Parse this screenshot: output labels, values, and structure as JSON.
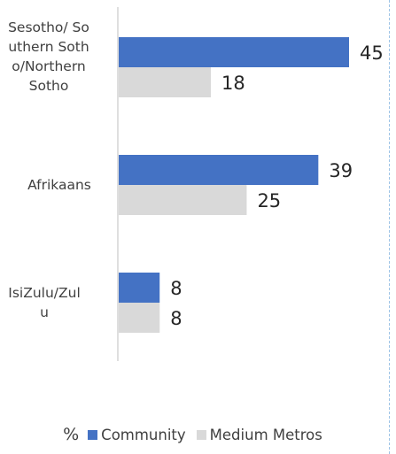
{
  "chart_data": {
    "type": "bar",
    "orientation": "horizontal",
    "categories": [
      "Sesotho/ Southern Sotho/Northern Sotho",
      "Afrikaans",
      "IsiZulu/Zulu"
    ],
    "series": [
      {
        "name": "Community",
        "values": [
          45,
          39,
          8
        ],
        "color": "#4472c4"
      },
      {
        "name": "Medium Metros",
        "values": [
          18,
          25,
          8
        ],
        "color": "#d9d9d9"
      }
    ],
    "unit": "%",
    "legend_position": "bottom",
    "grid": false
  }
}
